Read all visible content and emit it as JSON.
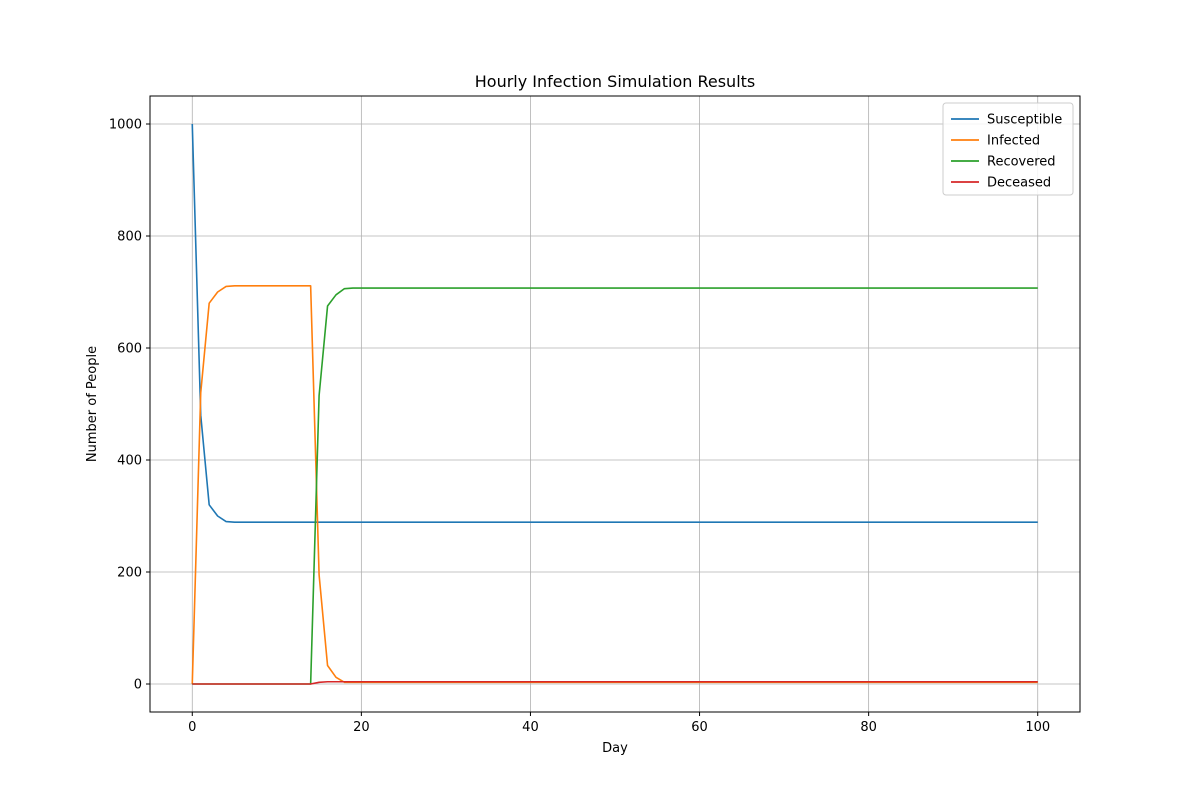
{
  "chart_data": {
    "type": "line",
    "title": "Hourly Infection Simulation Results",
    "xlabel": "Day",
    "ylabel": "Number of People",
    "xlim": [
      -5,
      105
    ],
    "ylim": [
      -50,
      1050
    ],
    "xticks": [
      0,
      20,
      40,
      60,
      80,
      100
    ],
    "yticks": [
      0,
      200,
      400,
      600,
      800,
      1000
    ],
    "grid": true,
    "legend_position": "top-right",
    "series": [
      {
        "name": "Susceptible",
        "color": "#1f77b4",
        "points": [
          [
            0,
            1000
          ],
          [
            1,
            480
          ],
          [
            2,
            320
          ],
          [
            3,
            300
          ],
          [
            4,
            290
          ],
          [
            5,
            289
          ],
          [
            100,
            289
          ]
        ]
      },
      {
        "name": "Infected",
        "color": "#ff7f0e",
        "points": [
          [
            0,
            0
          ],
          [
            1,
            520
          ],
          [
            2,
            680
          ],
          [
            3,
            700
          ],
          [
            4,
            710
          ],
          [
            5,
            711
          ],
          [
            14,
            711
          ],
          [
            15,
            195
          ],
          [
            16,
            33
          ],
          [
            17,
            12
          ],
          [
            18,
            3
          ],
          [
            100,
            3
          ]
        ]
      },
      {
        "name": "Recovered",
        "color": "#2ca02c",
        "points": [
          [
            0,
            0
          ],
          [
            14,
            0
          ],
          [
            15,
            515
          ],
          [
            16,
            675
          ],
          [
            17,
            695
          ],
          [
            18,
            706
          ],
          [
            19,
            707
          ],
          [
            100,
            707
          ]
        ]
      },
      {
        "name": "Deceased",
        "color": "#d62728",
        "points": [
          [
            0,
            0
          ],
          [
            14,
            0
          ],
          [
            15,
            3
          ],
          [
            16,
            4
          ],
          [
            17,
            4
          ],
          [
            18,
            4
          ],
          [
            100,
            4
          ]
        ]
      }
    ]
  }
}
